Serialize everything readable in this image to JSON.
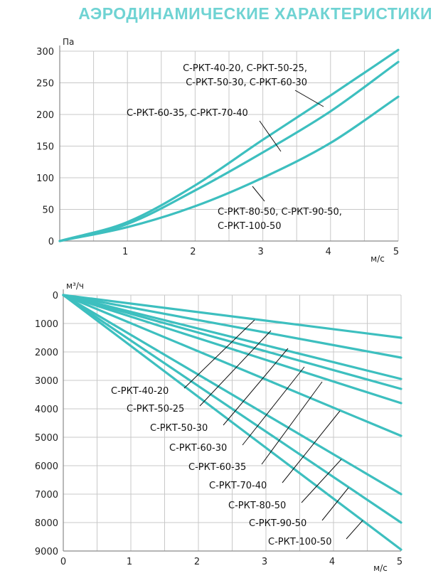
{
  "page": {
    "title": "АЭРОДИНАМИЧЕСКИЕ ХАРАКТЕРИСТИКИ"
  },
  "colors": {
    "line": "#3dbfbf",
    "grid": "#c8c8c8",
    "axis": "#8a8a8a",
    "title": "#6fd3d3"
  },
  "chart_data": [
    {
      "type": "line",
      "x_unit": "м/с",
      "y_unit": "Па",
      "xlim": [
        0,
        5
      ],
      "ylim": [
        0,
        300
      ],
      "x_ticks": [
        "0",
        "1",
        "2",
        "3",
        "4",
        "5"
      ],
      "y_ticks": [
        "0",
        "50",
        "100",
        "150",
        "200",
        "250",
        "300"
      ],
      "grid": true,
      "x": [
        0,
        1,
        2,
        3,
        4,
        5
      ],
      "series": [
        {
          "values": [
            0,
            30,
            88,
            160,
            230,
            302
          ],
          "label_lines": [
            "С-РКТ-40-20, С-РКТ-50-25,",
            "С-РКТ-50-30, С-РКТ-60-30"
          ]
        },
        {
          "values": [
            0,
            27,
            80,
            140,
            205,
            283
          ],
          "label_lines": [
            "С-РКТ-60-35, С-РКТ-70-40"
          ]
        },
        {
          "values": [
            0,
            22,
            55,
            100,
            155,
            228
          ],
          "label_lines": [
            "С-РКТ-80-50, С-РКТ-90-50,",
            "С-РКТ-100-50"
          ]
        }
      ]
    },
    {
      "type": "line",
      "x_unit": "м/с",
      "y_unit": "м³/ч",
      "xlim": [
        0,
        5
      ],
      "ylim": [
        0,
        9000
      ],
      "y_inverted": true,
      "x_ticks": [
        "0",
        "1",
        "2",
        "3",
        "4",
        "5"
      ],
      "y_ticks": [
        "0",
        "1000",
        "2000",
        "3000",
        "4000",
        "5000",
        "6000",
        "7000",
        "8000",
        "9000"
      ],
      "grid": true,
      "series": [
        {
          "name": "С-РКТ-40-20",
          "x": [
            0,
            5
          ],
          "values": [
            0,
            1500
          ]
        },
        {
          "name": "С-РКТ-50-25",
          "x": [
            0,
            5
          ],
          "values": [
            0,
            2200
          ]
        },
        {
          "name": "С-РКТ-50-30",
          "x": [
            0,
            5
          ],
          "values": [
            0,
            2950
          ]
        },
        {
          "name": "С-РКТ-60-30",
          "x": [
            0,
            5
          ],
          "values": [
            0,
            3300
          ]
        },
        {
          "name": "С-РКТ-60-35",
          "x": [
            0,
            5
          ],
          "values": [
            0,
            3800
          ]
        },
        {
          "name": "С-РКТ-70-40",
          "x": [
            0,
            5
          ],
          "values": [
            0,
            4950
          ]
        },
        {
          "name": "С-РКТ-80-50",
          "x": [
            0,
            5
          ],
          "values": [
            0,
            7000
          ]
        },
        {
          "name": "С-РКТ-90-50",
          "x": [
            0,
            5
          ],
          "values": [
            0,
            8000
          ]
        },
        {
          "name": "С-РКТ-100-50",
          "x": [
            0,
            5
          ],
          "values": [
            0,
            8950
          ]
        }
      ]
    }
  ]
}
